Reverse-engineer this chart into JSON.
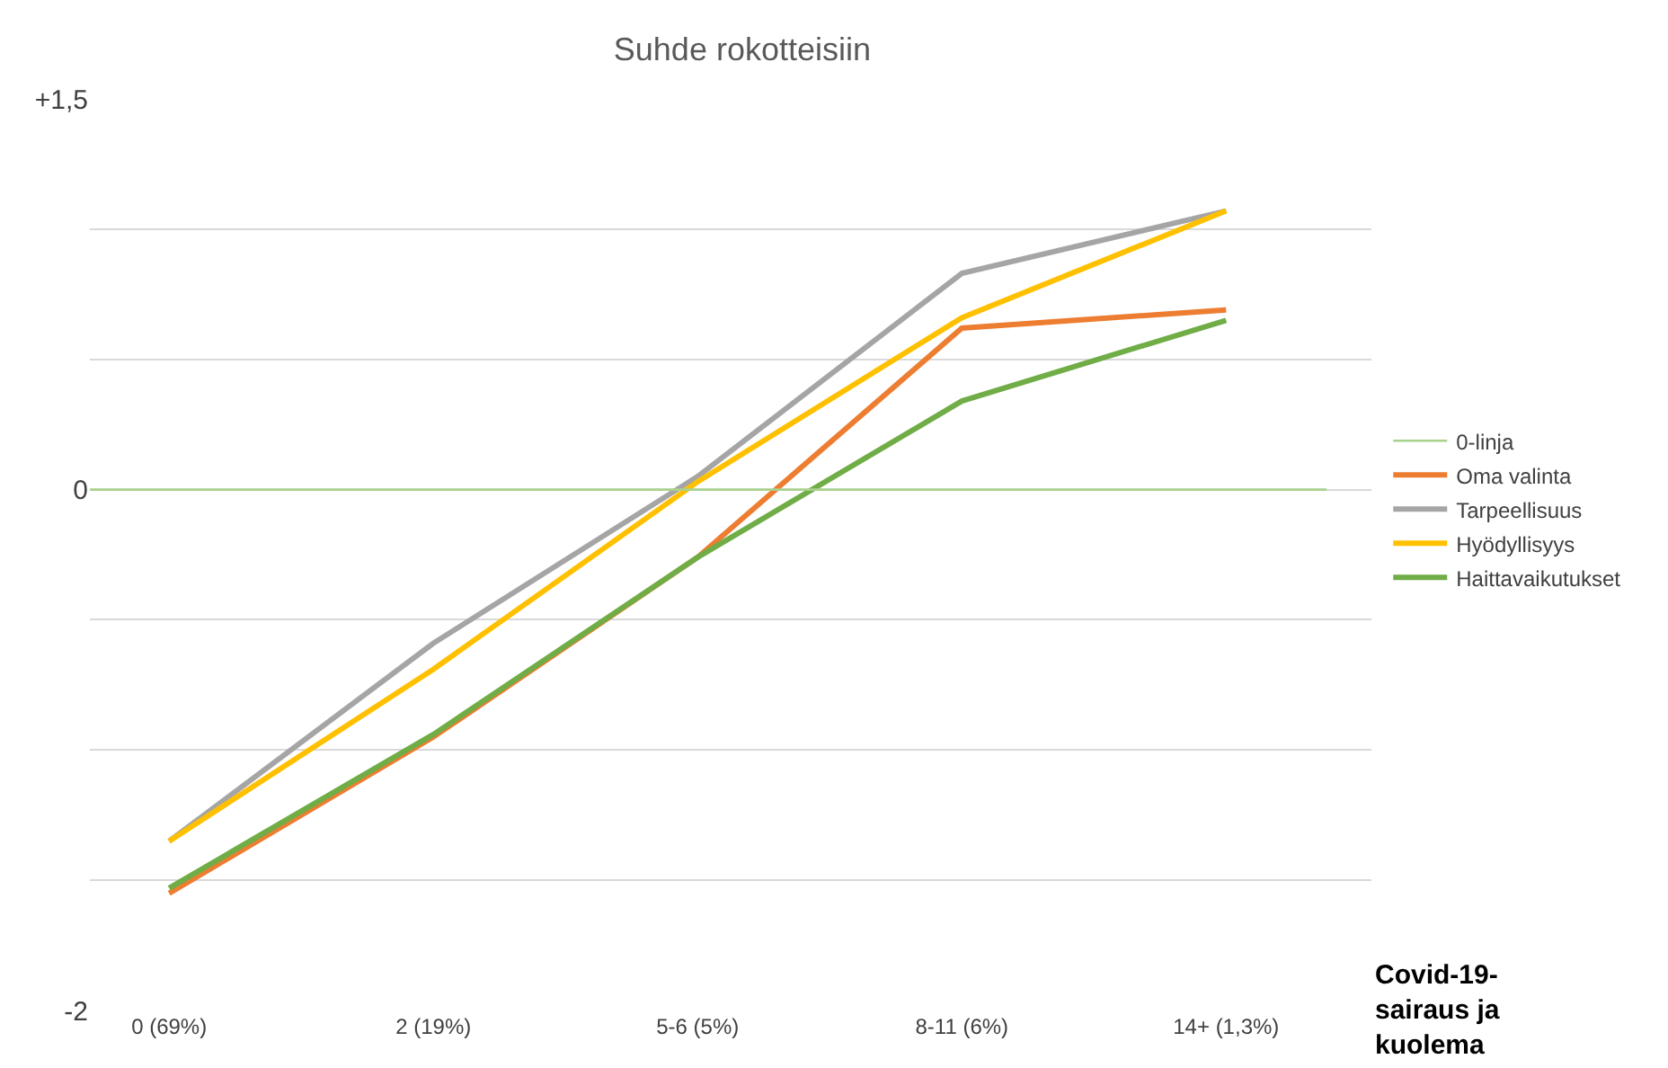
{
  "chart_data": {
    "type": "line",
    "title": "Suhde rokotteisiin",
    "categories": [
      "0 (69%)",
      "2 (19%)",
      "5-6 (5%)",
      "8-11 (6%)",
      "14+ (1,3%)"
    ],
    "series": [
      {
        "name": "Oma valinta",
        "color": "#ed7d31",
        "values": [
          -1.55,
          -0.95,
          -0.26,
          0.62,
          0.69
        ]
      },
      {
        "name": "Tarpeellisuus",
        "color": "#a5a5a5",
        "values": [
          -1.35,
          -0.59,
          0.05,
          0.83,
          1.07
        ]
      },
      {
        "name": "Hyödyllisyys",
        "color": "#ffc000",
        "values": [
          -1.35,
          -0.69,
          0.03,
          0.66,
          1.07
        ]
      },
      {
        "name": "Haittavaikutukset",
        "color": "#70ad47",
        "values": [
          -1.53,
          -0.94,
          -0.26,
          0.34,
          0.65
        ]
      }
    ],
    "ref_lines": [
      {
        "axis": "y",
        "value": 0,
        "label": "0-linja",
        "color": "#a9d18e"
      }
    ],
    "ylim": [
      -2,
      1.5
    ],
    "yticks": [
      {
        "value": 1.5,
        "label": "+1,5"
      },
      {
        "value": 1,
        "label": null
      },
      {
        "value": 0.5,
        "label": null
      },
      0,
      {
        "value": -0.5,
        "label": null
      },
      {
        "value": -1,
        "label": null
      },
      {
        "value": -1.5,
        "label": null
      },
      -2
    ],
    "grid": "y",
    "legend": "right",
    "marker": "none",
    "line_style": "solid",
    "annotations": [
      "Covid-19-\nsairaus ja\nkuolema"
    ]
  }
}
